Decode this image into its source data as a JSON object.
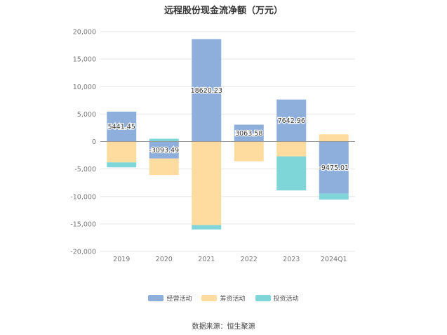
{
  "chart_data": {
    "type": "bar",
    "stacked": true,
    "title": "远程股份现金流净额（万元）",
    "categories": [
      "2019",
      "2020",
      "2021",
      "2022",
      "2023",
      "2024Q1"
    ],
    "series": [
      {
        "name": "经营活动",
        "color": "#8eaedc",
        "values": [
          5441.45,
          -3093.49,
          18620.23,
          3063.58,
          7642.96,
          -9475.01
        ]
      },
      {
        "name": "筹资活动",
        "color": "#fedb9e",
        "values": [
          -3800,
          -3000,
          -15200,
          -3600,
          -2700,
          1300
        ]
      },
      {
        "name": "投资活动",
        "color": "#7fd6d8",
        "values": [
          -900,
          500,
          -800,
          0,
          -6200,
          -1100
        ]
      }
    ],
    "data_labels": [
      "5441.45",
      "-3093.49",
      "18620.23",
      "3063.58",
      "7642.96",
      "-9475.01"
    ],
    "y_ticks": [
      "20,000",
      "15,000",
      "10,000",
      "5,000",
      "0",
      "-5,000",
      "-10,000",
      "-15,000",
      "-20,000"
    ],
    "ylim": [
      -20000,
      20000
    ],
    "grid": true,
    "legend_position": "bottom"
  },
  "source": "数据来源：恒生聚源"
}
